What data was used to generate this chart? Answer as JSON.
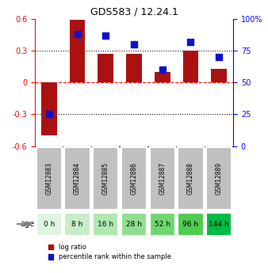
{
  "title": "GDS583 / 12.24.1",
  "samples": [
    "GSM12883",
    "GSM12884",
    "GSM12885",
    "GSM12886",
    "GSM12887",
    "GSM12888",
    "GSM12889"
  ],
  "ages": [
    "0 h",
    "8 h",
    "16 h",
    "28 h",
    "52 h",
    "96 h",
    "144 h"
  ],
  "age_colors": [
    "#e8f8e8",
    "#c8f0c8",
    "#a8e8a8",
    "#88e088",
    "#55cc55",
    "#33bb33",
    "#00aa00"
  ],
  "log_ratios": [
    -0.5,
    0.59,
    0.27,
    0.27,
    0.1,
    0.3,
    0.13
  ],
  "percentile_ranks": [
    25,
    88,
    87,
    80,
    60,
    82,
    70
  ],
  "bar_color": "#aa1111",
  "dot_color": "#1111cc",
  "ylim_left": [
    -0.6,
    0.6
  ],
  "ylim_right": [
    0,
    100
  ],
  "yticks_left": [
    -0.6,
    -0.3,
    0,
    0.3,
    0.6
  ],
  "yticks_right": [
    0,
    25,
    50,
    75,
    100
  ],
  "ytick_labels_left": [
    "-0.6",
    "-0.3",
    "0",
    "0.3",
    "0.6"
  ],
  "ytick_labels_right": [
    "0",
    "25",
    "50",
    "75",
    "100%"
  ],
  "hlines": [
    -0.3,
    0,
    0.3
  ],
  "hline_styles": [
    "dotted",
    "dashed",
    "dotted"
  ],
  "hline_colors": [
    "black",
    "red",
    "black"
  ],
  "legend_log_ratio": "log ratio",
  "legend_percentile": "percentile rank within the sample",
  "age_label": "age",
  "sample_box_color": "#c0c0c0",
  "age_box_colors": [
    "#e0f5e0",
    "#c8eec8",
    "#b0e8b0",
    "#90df90",
    "#70d670",
    "#50cc50",
    "#00bb44"
  ]
}
